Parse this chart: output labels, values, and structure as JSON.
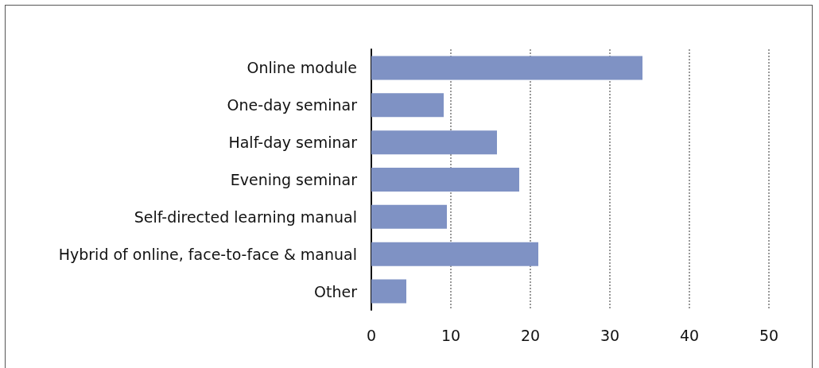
{
  "chart_data": {
    "type": "bar",
    "orientation": "horizontal",
    "categories": [
      "Online module",
      "One-day seminar",
      "Half-day seminar",
      "Evening seminar",
      "Self-directed learning manual",
      "Hybrid of online, face-to-face & manual",
      "Other"
    ],
    "values": [
      34.1,
      9.1,
      15.8,
      18.6,
      9.5,
      21.0,
      4.4
    ],
    "color": "#7f92c4",
    "xlim": [
      0,
      50
    ],
    "xticks": [
      0,
      10,
      20,
      30,
      40,
      50
    ],
    "grid": "x",
    "line_style": "dotted"
  }
}
